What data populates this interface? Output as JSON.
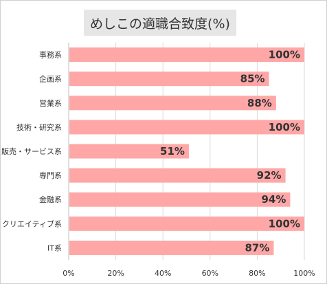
{
  "chart_data": {
    "type": "bar",
    "orientation": "horizontal",
    "title": "めしこの適職合致度(%)",
    "categories": [
      "事務系",
      "企画系",
      "営業系",
      "技術・研究系",
      "販売・サービス系",
      "専門系",
      "金融系",
      "クリエイティブ系",
      "IT系"
    ],
    "values": [
      100,
      85,
      88,
      100,
      51,
      92,
      94,
      100,
      87
    ],
    "data_labels": [
      "100%",
      "85%",
      "88%",
      "100%",
      "51%",
      "92%",
      "94%",
      "100%",
      "87%"
    ],
    "x_ticks": [
      "0%",
      "20%",
      "40%",
      "60%",
      "80%",
      "100%"
    ],
    "xlim": [
      0,
      100
    ],
    "grid": true,
    "colors": {
      "bar": "#ffa7a7",
      "grid": "#d9d9d9",
      "axis": "#bfbfbf",
      "title_bg": "#e6e6e6"
    }
  }
}
